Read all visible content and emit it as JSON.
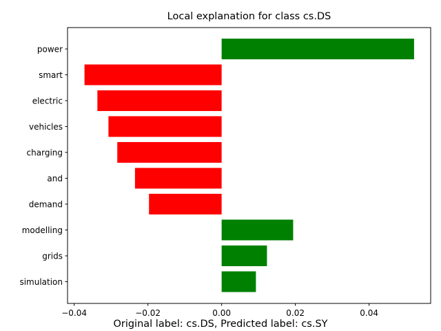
{
  "chart_data": {
    "type": "bar",
    "orientation": "horizontal",
    "title": "Local explanation for class cs.DS",
    "caption": "Original label: cs.DS, Predicted label: cs.SY",
    "categories": [
      "power",
      "smart",
      "electric",
      "vehicles",
      "charging",
      "and",
      "demand",
      "modelling",
      "grids",
      "simulation"
    ],
    "values": [
      0.0522,
      -0.0372,
      -0.0337,
      -0.0307,
      -0.0283,
      -0.0235,
      -0.0197,
      0.0194,
      0.0123,
      0.0093
    ],
    "xlim": [
      -0.0418,
      0.0567
    ],
    "xticks": [
      -0.04,
      -0.02,
      0.0,
      0.02,
      0.04
    ],
    "xtick_labels": [
      "−0.04",
      "−0.02",
      "0.00",
      "0.02",
      "0.04"
    ],
    "colors": {
      "positive": "#008000",
      "negative": "#ff0000"
    },
    "grid": false,
    "legend": "none"
  }
}
